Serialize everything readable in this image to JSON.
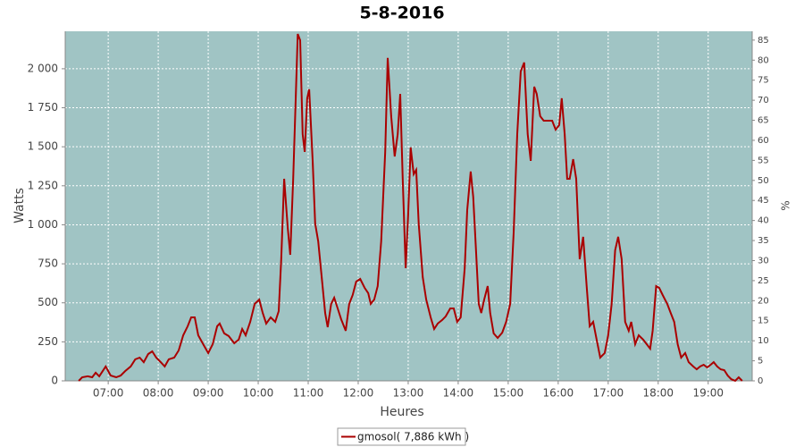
{
  "chart_data": {
    "type": "line",
    "title": "5-8-2016",
    "xlabel": "Heures",
    "ylabel": "Watts",
    "y2label": "%",
    "x": [
      6.41,
      6.48,
      6.59,
      6.68,
      6.75,
      6.82,
      6.95,
      7.05,
      7.16,
      7.25,
      7.34,
      7.45,
      7.54,
      7.63,
      7.71,
      7.8,
      7.88,
      7.96,
      8.05,
      8.13,
      8.21,
      8.32,
      8.41,
      8.5,
      8.59,
      8.66,
      8.73,
      8.8,
      8.91,
      9.0,
      9.09,
      9.18,
      9.23,
      9.32,
      9.41,
      9.52,
      9.61,
      9.68,
      9.75,
      9.84,
      9.93,
      10.02,
      10.09,
      10.16,
      10.25,
      10.34,
      10.41,
      10.46,
      10.52,
      10.59,
      10.64,
      10.7,
      10.79,
      10.84,
      10.89,
      10.93,
      10.98,
      11.02,
      11.09,
      11.14,
      11.2,
      11.27,
      11.34,
      11.39,
      11.46,
      11.52,
      11.59,
      11.66,
      11.75,
      11.82,
      11.89,
      11.96,
      12.04,
      12.13,
      12.2,
      12.25,
      12.32,
      12.39,
      12.46,
      12.54,
      12.59,
      12.66,
      12.73,
      12.79,
      12.84,
      12.89,
      12.95,
      13.0,
      13.05,
      13.11,
      13.16,
      13.21,
      13.29,
      13.36,
      13.45,
      13.52,
      13.59,
      13.68,
      13.75,
      13.84,
      13.91,
      13.98,
      14.05,
      14.13,
      14.18,
      14.25,
      14.3,
      14.36,
      14.41,
      14.46,
      14.52,
      14.59,
      14.64,
      14.71,
      14.79,
      14.88,
      14.96,
      15.04,
      15.11,
      15.18,
      15.25,
      15.32,
      15.39,
      15.45,
      15.52,
      15.57,
      15.64,
      15.71,
      15.8,
      15.88,
      15.95,
      16.02,
      16.07,
      16.13,
      16.18,
      16.23,
      16.3,
      16.36,
      16.43,
      16.5,
      16.57,
      16.63,
      16.7,
      16.77,
      16.84,
      16.93,
      17.0,
      17.07,
      17.14,
      17.2,
      17.27,
      17.34,
      17.41,
      17.46,
      17.54,
      17.61,
      17.7,
      17.77,
      17.84,
      17.89,
      17.96,
      18.02,
      18.09,
      18.18,
      18.25,
      18.32,
      18.39,
      18.46,
      18.54,
      18.61,
      18.7,
      18.77,
      18.84,
      18.91,
      18.98,
      19.05,
      19.11,
      19.18,
      19.25,
      19.32,
      19.39,
      19.46,
      19.54,
      19.61,
      19.68
    ],
    "series": [
      {
        "name": "gmosol( 7,886 kWh )",
        "color": "#aa0000",
        "values": [
          0,
          23,
          29,
          23,
          52,
          29,
          92,
          34,
          23,
          34,
          63,
          92,
          138,
          149,
          120,
          172,
          189,
          149,
          120,
          92,
          138,
          149,
          195,
          292,
          350,
          407,
          407,
          292,
          229,
          178,
          235,
          350,
          367,
          304,
          287,
          241,
          264,
          332,
          292,
          378,
          493,
          521,
          435,
          367,
          407,
          378,
          447,
          779,
          1295,
          980,
          808,
          1295,
          2223,
          2183,
          1581,
          1467,
          1811,
          1868,
          1410,
          1008,
          894,
          665,
          435,
          344,
          493,
          533,
          464,
          395,
          321,
          493,
          550,
          636,
          653,
          596,
          562,
          493,
          521,
          607,
          894,
          1467,
          2069,
          1696,
          1438,
          1581,
          1839,
          1295,
          722,
          1066,
          1496,
          1324,
          1352,
          1008,
          665,
          521,
          407,
          332,
          367,
          390,
          413,
          464,
          464,
          378,
          407,
          722,
          1094,
          1341,
          1180,
          808,
          493,
          435,
          521,
          607,
          435,
          304,
          275,
          309,
          378,
          493,
          951,
          1581,
          1983,
          2040,
          1581,
          1410,
          1885,
          1839,
          1696,
          1667,
          1667,
          1667,
          1610,
          1639,
          1811,
          1581,
          1295,
          1295,
          1421,
          1295,
          779,
          923,
          607,
          350,
          378,
          264,
          149,
          178,
          292,
          493,
          837,
          923,
          779,
          378,
          321,
          378,
          235,
          292,
          264,
          235,
          206,
          321,
          607,
          596,
          550,
          493,
          435,
          378,
          235,
          149,
          178,
          120,
          92,
          74,
          92,
          103,
          86,
          103,
          120,
          92,
          74,
          69,
          34,
          11,
          0,
          23,
          0
        ]
      }
    ],
    "xlim": [
      6.14,
      19.88
    ],
    "xticks": [
      {
        "value": 7,
        "label": "07:00"
      },
      {
        "value": 8,
        "label": "08:00"
      },
      {
        "value": 9,
        "label": "09:00"
      },
      {
        "value": 10,
        "label": "10:00"
      },
      {
        "value": 11,
        "label": "11:00"
      },
      {
        "value": 12,
        "label": "12:00"
      },
      {
        "value": 13,
        "label": "13:00"
      },
      {
        "value": 14,
        "label": "14:00"
      },
      {
        "value": 15,
        "label": "15:00"
      },
      {
        "value": 16,
        "label": "16:00"
      },
      {
        "value": 17,
        "label": "17:00"
      },
      {
        "value": 18,
        "label": "18:00"
      },
      {
        "value": 19,
        "label": "19:00"
      }
    ],
    "ylim": [
      0,
      2240
    ],
    "yticks": [
      0,
      250,
      500,
      750,
      {
        "value": 1000,
        "label": "1 000"
      },
      {
        "value": 1250,
        "label": "1 250"
      },
      {
        "value": 1500,
        "label": "1 500"
      },
      {
        "value": 1750,
        "label": "1 750"
      },
      {
        "value": 2000,
        "label": "2 000"
      }
    ],
    "y2lim": [
      0,
      87.2
    ],
    "y2ticks": [
      0,
      5,
      10,
      15,
      20,
      25,
      30,
      35,
      40,
      45,
      50,
      55,
      60,
      65,
      70,
      75,
      80,
      85
    ],
    "grid": true,
    "background": "#a0c4c4",
    "legend": "bottom"
  }
}
